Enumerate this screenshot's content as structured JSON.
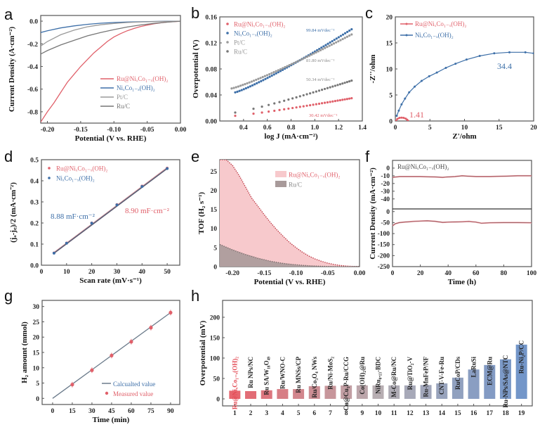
{
  "figure": {
    "panels": [
      "a",
      "b",
      "c",
      "d",
      "e",
      "f",
      "g",
      "h"
    ]
  },
  "colors": {
    "ru_ni": "#e0606a",
    "nico": "#3d6fa8",
    "ptc": "#9a9a9a",
    "ruc": "#777777",
    "ru_ni_fill": "#f7c9cc",
    "ruc_fill": "#a89a9a",
    "h_blue": "#5b84c0",
    "h_red": "#e34b55"
  },
  "chart_data": [
    {
      "id": "a",
      "type": "line",
      "title": "",
      "xlabel": "Potential (V vs. RHE)",
      "ylabel": "Current Density (A·cm⁻²)",
      "xlim": [
        -0.21,
        0.0
      ],
      "ylim": [
        -0.9,
        0.05
      ],
      "xticks": [
        "-0.20",
        "-0.15",
        "-0.10",
        "-0.05",
        "0.00"
      ],
      "xtick_vals": [
        -0.2,
        -0.15,
        -0.1,
        -0.05,
        0.0
      ],
      "yticks": [
        "0.0",
        "-0.2",
        "-0.4",
        "-0.6",
        "-0.8"
      ],
      "ytick_vals": [
        0.0,
        -0.2,
        -0.4,
        -0.6,
        -0.8
      ],
      "legend": "center-right",
      "series": [
        {
          "name": "Ru@NiₓCo₁₋ₓ(OH)₂",
          "color_key": "ru_ni",
          "x": [
            -0.21,
            -0.2,
            -0.19,
            -0.18,
            -0.17,
            -0.16,
            -0.15,
            -0.14,
            -0.13,
            -0.12,
            -0.11,
            -0.1,
            -0.09,
            -0.08,
            -0.07,
            -0.06,
            -0.05,
            -0.04,
            -0.03,
            -0.02,
            -0.01,
            0.0
          ],
          "y": [
            -0.89,
            -0.8,
            -0.72,
            -0.63,
            -0.54,
            -0.47,
            -0.4,
            -0.34,
            -0.28,
            -0.23,
            -0.18,
            -0.14,
            -0.11,
            -0.085,
            -0.065,
            -0.048,
            -0.035,
            -0.024,
            -0.015,
            -0.008,
            -0.004,
            -0.001
          ]
        },
        {
          "name": "NiₓCo₁₋ₓ(OH)₂",
          "color_key": "nico",
          "x": [
            -0.21,
            -0.2,
            -0.18,
            -0.16,
            -0.14,
            -0.12,
            -0.1,
            -0.08,
            -0.06,
            -0.04,
            -0.02,
            0.0
          ],
          "y": [
            -0.1,
            -0.085,
            -0.06,
            -0.042,
            -0.028,
            -0.018,
            -0.012,
            -0.008,
            -0.005,
            -0.003,
            -0.001,
            0.0
          ]
        },
        {
          "name": "Pt/C",
          "color_key": "ptc",
          "x": [
            -0.21,
            -0.2,
            -0.18,
            -0.16,
            -0.14,
            -0.12,
            -0.1,
            -0.08,
            -0.06,
            -0.04,
            -0.02,
            0.0
          ],
          "y": [
            -0.22,
            -0.18,
            -0.12,
            -0.08,
            -0.05,
            -0.032,
            -0.02,
            -0.012,
            -0.007,
            -0.004,
            -0.002,
            0.0
          ]
        },
        {
          "name": "Ru/C",
          "color_key": "ruc",
          "x": [
            -0.21,
            -0.2,
            -0.18,
            -0.16,
            -0.14,
            -0.12,
            -0.1,
            -0.08,
            -0.06,
            -0.04,
            -0.02,
            0.0
          ],
          "y": [
            -0.29,
            -0.26,
            -0.21,
            -0.17,
            -0.13,
            -0.1,
            -0.075,
            -0.052,
            -0.034,
            -0.02,
            -0.009,
            0.0
          ]
        }
      ]
    },
    {
      "id": "b",
      "type": "scatter",
      "xlabel": "log J (mA·cm⁻²)",
      "ylabel": "Overpotential (V)",
      "xlim": [
        0.2,
        1.4
      ],
      "ylim": [
        0.0,
        0.16
      ],
      "xticks": [
        "0.4",
        "0.6",
        "0.8",
        "1.0",
        "1.2",
        "1.4"
      ],
      "xtick_vals": [
        0.4,
        0.6,
        0.8,
        1.0,
        1.2,
        1.4
      ],
      "yticks": [
        "0.00",
        "0.04",
        "0.08",
        "0.12",
        "0.16"
      ],
      "ytick_vals": [
        0.0,
        0.04,
        0.08,
        0.12,
        0.16
      ],
      "legend": "top-left",
      "series": [
        {
          "name": "Ru@NiₓCo₁₋ₓ(OH)₂",
          "color_key": "ru_ni",
          "x_start": 0.33,
          "x_end": 1.31,
          "y_start": 0.008,
          "y_end": 0.035,
          "slope_label": "30.42 mVdec⁻¹"
        },
        {
          "name": "NiₓCo₁₋ₓ(OH)₂",
          "color_key": "nico",
          "x_start": 0.33,
          "x_end": 1.31,
          "y_start": 0.044,
          "y_end": 0.141,
          "slope_label": "99.84 mVdec⁻¹"
        },
        {
          "name": "Pt/C",
          "color_key": "ptc",
          "x_start": 0.3,
          "x_end": 1.31,
          "y_start": 0.05,
          "y_end": 0.133,
          "slope_label": "81.80 mVdec⁻¹"
        },
        {
          "name": "Ru/C",
          "color_key": "ruc",
          "x_start": 0.33,
          "x_end": 1.31,
          "y_start": 0.013,
          "y_end": 0.062,
          "slope_label": "50.34 mVdec⁻¹"
        }
      ]
    },
    {
      "id": "c",
      "type": "line",
      "xlabel": "Z'/ohm",
      "ylabel": "-Z''/ohm",
      "xlim": [
        0,
        20
      ],
      "ylim": [
        0,
        20
      ],
      "xticks": [
        "0",
        "5",
        "10",
        "15",
        "20"
      ],
      "xtick_vals": [
        0,
        5,
        10,
        15,
        20
      ],
      "yticks": [
        "0",
        "5",
        "10",
        "15",
        "20"
      ],
      "ytick_vals": [
        0,
        5,
        10,
        15,
        20
      ],
      "legend": "top-left",
      "series": [
        {
          "name": "Ru@NiₓCo₁₋ₓ(OH)₂",
          "color_key": "ru_ni",
          "x": [
            0.1,
            0.3,
            0.6,
            0.9,
            1.2,
            1.5,
            1.7,
            1.85
          ],
          "y": [
            0.05,
            0.4,
            0.6,
            0.65,
            0.6,
            0.45,
            0.25,
            0.05
          ],
          "annotation": "1.41"
        },
        {
          "name": "NiₓCo₁₋ₓ(OH)₂",
          "color_key": "nico",
          "x": [
            0.2,
            0.5,
            0.9,
            1.4,
            2.0,
            2.8,
            3.8,
            4.9,
            6.0,
            7.3,
            8.7,
            10.3,
            12.2,
            14.3,
            16.5,
            18.8,
            20
          ],
          "y": [
            1.0,
            2.0,
            3.2,
            4.3,
            5.5,
            6.6,
            7.7,
            8.6,
            9.3,
            10.2,
            11.0,
            11.8,
            12.5,
            13.0,
            13.2,
            13.2,
            13.0
          ],
          "annotation": "34.4"
        }
      ]
    },
    {
      "id": "d",
      "type": "scatter",
      "xlabel": "Scan rate (mV·s⁻¹)",
      "ylabel": "(jₐ-j꜀)/2 (mA·cm⁻²)",
      "xlim": [
        0,
        55
      ],
      "ylim": [
        0.0,
        0.5
      ],
      "xticks": [
        "0",
        "10",
        "20",
        "30",
        "40",
        "50"
      ],
      "xtick_vals": [
        0,
        10,
        20,
        30,
        40,
        50
      ],
      "yticks": [
        "0.0",
        "0.1",
        "0.2",
        "0.3",
        "0.4",
        "0.5"
      ],
      "ytick_vals": [
        0.0,
        0.1,
        0.2,
        0.3,
        0.4,
        0.5
      ],
      "legend": "top-left",
      "x": [
        5,
        10,
        20,
        30,
        40,
        50
      ],
      "series": [
        {
          "name": "Ru@NiₓCo₁₋ₓ(OH)₂",
          "color_key": "ru_ni",
          "values": [
            0.058,
            0.105,
            0.2,
            0.287,
            0.375,
            0.46
          ],
          "annotation": "8.90 mF·cm⁻²"
        },
        {
          "name": "NiₓCo₁₋ₓ(OH)₂",
          "color_key": "nico",
          "values": [
            0.057,
            0.104,
            0.199,
            0.286,
            0.373,
            0.458
          ],
          "annotation": "8.88 mF·cm⁻²"
        }
      ]
    },
    {
      "id": "e",
      "type": "area",
      "xlabel": "Potential (V vs. RHE)",
      "ylabel": "TOF (H₂ s⁻¹)",
      "xlim": [
        -0.22,
        0.0
      ],
      "ylim": [
        0,
        28
      ],
      "xticks": [
        "-0.20",
        "-0.15",
        "-0.10",
        "-0.05",
        "0.00"
      ],
      "xtick_vals": [
        -0.2,
        -0.15,
        -0.1,
        -0.05,
        0.0
      ],
      "yticks": [
        "0",
        "5",
        "10",
        "15",
        "20",
        "25"
      ],
      "ytick_vals": [
        0,
        5,
        10,
        15,
        20,
        25
      ],
      "legend": "top-right",
      "series": [
        {
          "name": "Ru@NiₓCo₁₋ₓ(OH)₂",
          "color_key": "ru_ni",
          "x": [
            -0.22,
            -0.21,
            -0.2,
            -0.19,
            -0.18,
            -0.17,
            -0.16,
            -0.15,
            -0.14,
            -0.13,
            -0.12,
            -0.11,
            -0.1,
            -0.09,
            -0.08,
            -0.07,
            -0.06,
            -0.05,
            -0.04,
            -0.03,
            -0.02,
            -0.01,
            0.0
          ],
          "y": [
            28,
            28,
            26.5,
            24,
            21,
            18,
            15.8,
            13.6,
            11.5,
            9.6,
            7.9,
            6.3,
            5.0,
            3.8,
            2.8,
            2.0,
            1.4,
            0.9,
            0.55,
            0.3,
            0.15,
            0.06,
            0.0
          ]
        },
        {
          "name": "Ru/C",
          "color_key": "ruc",
          "x": [
            -0.22,
            -0.21,
            -0.2,
            -0.19,
            -0.18,
            -0.17,
            -0.16,
            -0.15,
            -0.14,
            -0.13,
            -0.12,
            -0.11,
            -0.1,
            -0.09,
            -0.08,
            -0.07,
            -0.06,
            -0.05,
            -0.04,
            -0.03,
            -0.02,
            -0.01,
            0.0
          ],
          "y": [
            5.8,
            5.1,
            4.4,
            3.8,
            3.2,
            2.7,
            2.2,
            1.8,
            1.4,
            1.1,
            0.85,
            0.65,
            0.48,
            0.35,
            0.24,
            0.16,
            0.1,
            0.06,
            0.03,
            0.015,
            0.007,
            0.002,
            0.0
          ]
        }
      ]
    },
    {
      "id": "f",
      "type": "line",
      "xlabel": "Time (h)",
      "ylabel": "Current Density (mA·cm⁻²)",
      "xlim": [
        0,
        100
      ],
      "xticks": [
        "0",
        "20",
        "40",
        "60",
        "80",
        "100"
      ],
      "xtick_vals": [
        0,
        20,
        40,
        60,
        80,
        100
      ],
      "legend_text": "Ru@NiₓCo₁₋ₓ(OH)₂",
      "subplots": [
        {
          "ylim": [
            -50,
            10
          ],
          "yticks": [
            "0",
            "-10",
            "-20",
            "-30",
            "-40"
          ],
          "ytick_vals": [
            0,
            -10,
            -20,
            -30,
            -40
          ],
          "x": [
            0,
            5,
            10,
            20,
            30,
            36,
            40,
            45,
            50,
            55,
            60,
            70,
            80,
            90,
            100
          ],
          "y": [
            -12,
            -11,
            -11,
            -11,
            -11.5,
            -12,
            -11.5,
            -11,
            -10,
            -10.5,
            -11,
            -11,
            -10.5,
            -10,
            -10
          ]
        },
        {
          "ylim": [
            -250,
            10
          ],
          "yticks": [
            "0",
            "-50",
            "-100",
            "-150",
            "-200",
            "-250"
          ],
          "ytick_vals": [
            0,
            -50,
            -100,
            -150,
            -200,
            -250
          ],
          "x": [
            0,
            2,
            5,
            10,
            15,
            20,
            25,
            30,
            36,
            40,
            45,
            50,
            55,
            60,
            64,
            70,
            80,
            90,
            100
          ],
          "y": [
            -65,
            -55,
            -50,
            -47,
            -45,
            -43,
            -42,
            -44,
            -49,
            -48,
            -47,
            -46,
            -45,
            -48,
            -53,
            -51,
            -50,
            -50,
            -51
          ]
        }
      ]
    },
    {
      "id": "g",
      "type": "scatter",
      "xlabel": "Time (min)",
      "ylabel": "H₂ amount (mmol)",
      "xlim": [
        -8,
        97
      ],
      "ylim": [
        -2,
        32
      ],
      "xticks": [
        "0",
        "15",
        "30",
        "45",
        "60",
        "75",
        "90"
      ],
      "xtick_vals": [
        0,
        15,
        30,
        45,
        60,
        75,
        90
      ],
      "yticks": [
        "0",
        "5",
        "10",
        "15",
        "20",
        "25",
        "30"
      ],
      "ytick_vals": [
        0,
        5,
        10,
        15,
        20,
        25,
        30
      ],
      "legend": "bottom-right",
      "series": [
        {
          "name": "Calcualted value",
          "kind": "line",
          "color_key": "ruc",
          "x": [
            0,
            90
          ],
          "y": [
            0,
            28
          ]
        },
        {
          "name": "Measured value",
          "kind": "points",
          "color_key": "ru_ni",
          "x": [
            15,
            30,
            45,
            60,
            75,
            90
          ],
          "y": [
            4.5,
            9.2,
            14.0,
            18.5,
            23.1,
            28.0
          ]
        }
      ]
    },
    {
      "id": "h",
      "type": "bar",
      "xlabel": "",
      "ylabel": "Overpotential (mV)",
      "ylim": [
        0,
        240
      ],
      "yticks": [
        "0",
        "50",
        "100",
        "150",
        "200"
      ],
      "ytick_vals": [
        0,
        50,
        100,
        150,
        200
      ],
      "categories": [
        "1",
        "2",
        "3",
        "4",
        "5",
        "6",
        "7",
        "8",
        "9",
        "10",
        "11",
        "12",
        "13",
        "14",
        "15",
        "16",
        "17",
        "18",
        "19"
      ],
      "bar_labels": [
        "Ru@NiₓCo₁₋ₓ(OH)₂",
        "Ru NPs/NC",
        "Ru SA/W₁₈O₄₉",
        "Ru/WNO-C",
        "Ru MNSs/CP",
        "Ru/Co₃O₄ NWs",
        "Ru/Ni-MoS₂",
        "Cu@Cu₃P-Ru/CCG",
        "Co(OH)₂@Ru",
        "NiRu₀.₁₃-BDC",
        "M-Co@Ru/NC",
        "Ru@TiO₂-V",
        "Ru-MnFeP/NF",
        "CNT-V-Fe-Ru",
        "RuCoP/CDs",
        "LaRuSi",
        "ECM@Ru",
        "Ru-NPs/SAs@NTC",
        "Ru-Ni₂P/CC"
      ],
      "values": [
        20,
        19,
        21,
        24,
        24,
        31,
        32,
        33,
        33,
        33,
        33,
        33,
        34,
        38,
        52,
        72,
        83,
        97,
        133
      ]
    }
  ]
}
